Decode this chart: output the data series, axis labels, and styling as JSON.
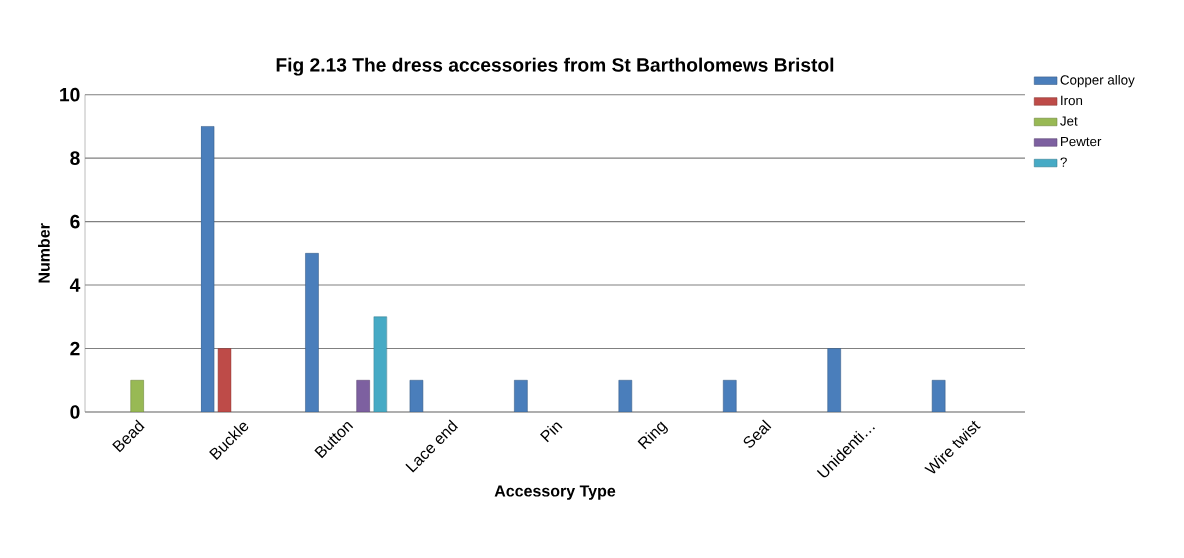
{
  "chart_data": {
    "type": "bar",
    "title": "Fig 2.13 The dress accessories from St Bartholomews Bristol",
    "xlabel": "Accessory Type",
    "ylabel": "Number",
    "categories": [
      "Bead",
      "Buckle",
      "Button",
      "Lace end",
      "Pin",
      "Ring",
      "Seal",
      "Unidenti…",
      "Wire twist"
    ],
    "series": [
      {
        "name": "Copper alloy",
        "color": "#4a7ebb",
        "values": [
          null,
          9,
          5,
          1,
          1,
          1,
          1,
          2,
          1
        ]
      },
      {
        "name": "Iron",
        "color": "#be4b48",
        "values": [
          null,
          2,
          null,
          null,
          null,
          null,
          null,
          null,
          null
        ]
      },
      {
        "name": "Jet",
        "color": "#98b954",
        "values": [
          1,
          null,
          null,
          null,
          null,
          null,
          null,
          null,
          null
        ]
      },
      {
        "name": "Pewter",
        "color": "#7d60a0",
        "values": [
          null,
          null,
          1,
          null,
          null,
          null,
          null,
          null,
          null
        ]
      },
      {
        "name": "?",
        "color": "#46aac5",
        "values": [
          null,
          null,
          3,
          null,
          null,
          null,
          null,
          null,
          null
        ]
      }
    ],
    "ylim": [
      0,
      10
    ],
    "yticks": [
      0,
      2,
      4,
      6,
      8,
      10
    ],
    "grid": "y",
    "legend": "top right"
  }
}
